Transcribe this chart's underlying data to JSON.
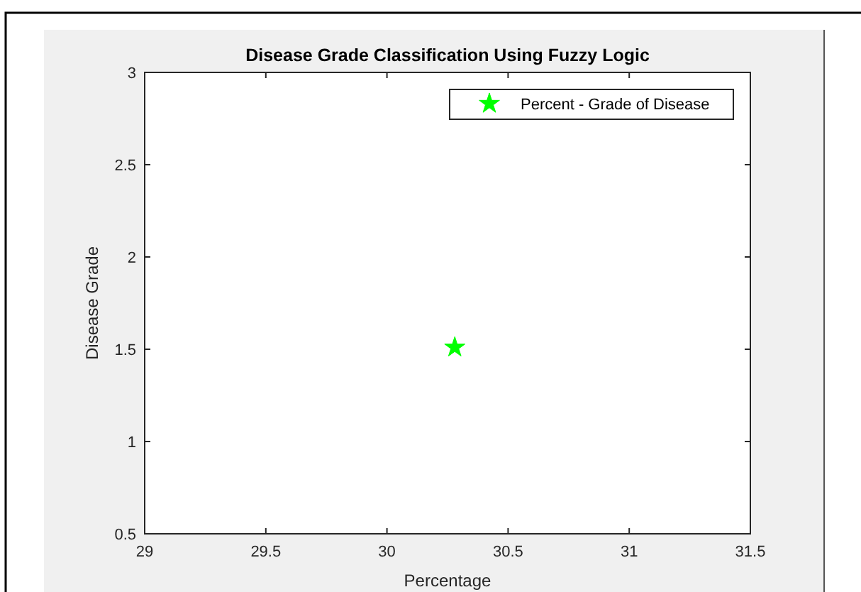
{
  "chart_data": {
    "type": "scatter",
    "title": "Disease Grade Classification Using Fuzzy Logic",
    "xlabel": "Percentage",
    "ylabel": "Disease Grade",
    "x": [
      30.28
    ],
    "series": [
      {
        "name": "Percent - Grade of Disease",
        "color": "#00ff00",
        "values": [
          1.51
        ]
      }
    ],
    "xlim": [
      29,
      31.5
    ],
    "xticks": [
      29,
      29.5,
      30,
      30.5,
      31,
      31.5
    ],
    "ylim": [
      0.5,
      3
    ],
    "yticks": [
      0.5,
      1,
      1.5,
      2,
      2.5,
      3
    ],
    "marker": "star",
    "legend": "top right",
    "grid": false
  }
}
